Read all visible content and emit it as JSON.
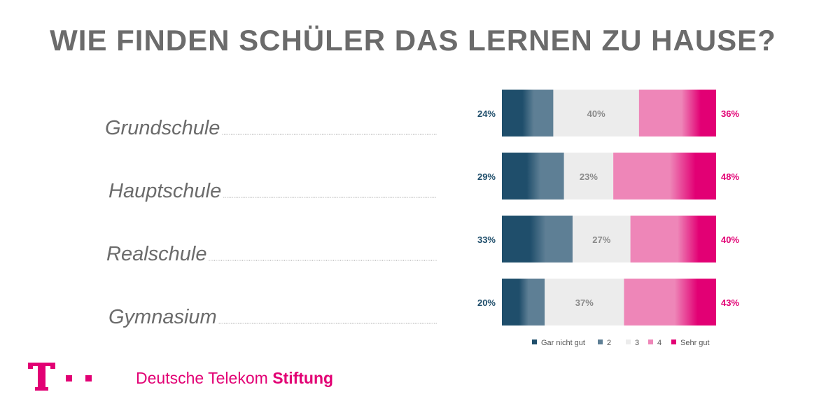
{
  "title": "WIE FINDEN SCHÜLER DAS LERNEN ZU HAUSE?",
  "brand": {
    "name_regular": "Deutsche Telekom",
    "name_bold": "Stiftung",
    "logo_icon": "telekom-t-logo-icon"
  },
  "colors": {
    "dark_blue": "#1f4e6b",
    "mid_blue": "#5e7f95",
    "light_grey": "#ececec",
    "light_pink": "#ee86b8",
    "magenta": "#e20074",
    "text_grey": "#8a8a8a",
    "title_grey": "#6b6b6b"
  },
  "chart_data": {
    "type": "bar",
    "orientation": "horizontal-stacked",
    "categories": [
      "Grundschule",
      "Hauptschule",
      "Realschule",
      "Gymnasium"
    ],
    "legend": [
      "Gar nicht gut",
      "2",
      "3",
      "4",
      "Sehr gut"
    ],
    "groups": [
      {
        "name": "negative",
        "values": [
          24,
          29,
          33,
          20
        ]
      },
      {
        "name": "neutral",
        "values": [
          40,
          23,
          27,
          37
        ]
      },
      {
        "name": "positive",
        "values": [
          36,
          48,
          40,
          43
        ]
      }
    ],
    "labels": {
      "negative": [
        "24%",
        "29%",
        "33%",
        "20%"
      ],
      "neutral": [
        "40%",
        "23%",
        "27%",
        "37%"
      ],
      "positive": [
        "36%",
        "48%",
        "40%",
        "43%"
      ]
    },
    "legend_placement": "bottom"
  }
}
